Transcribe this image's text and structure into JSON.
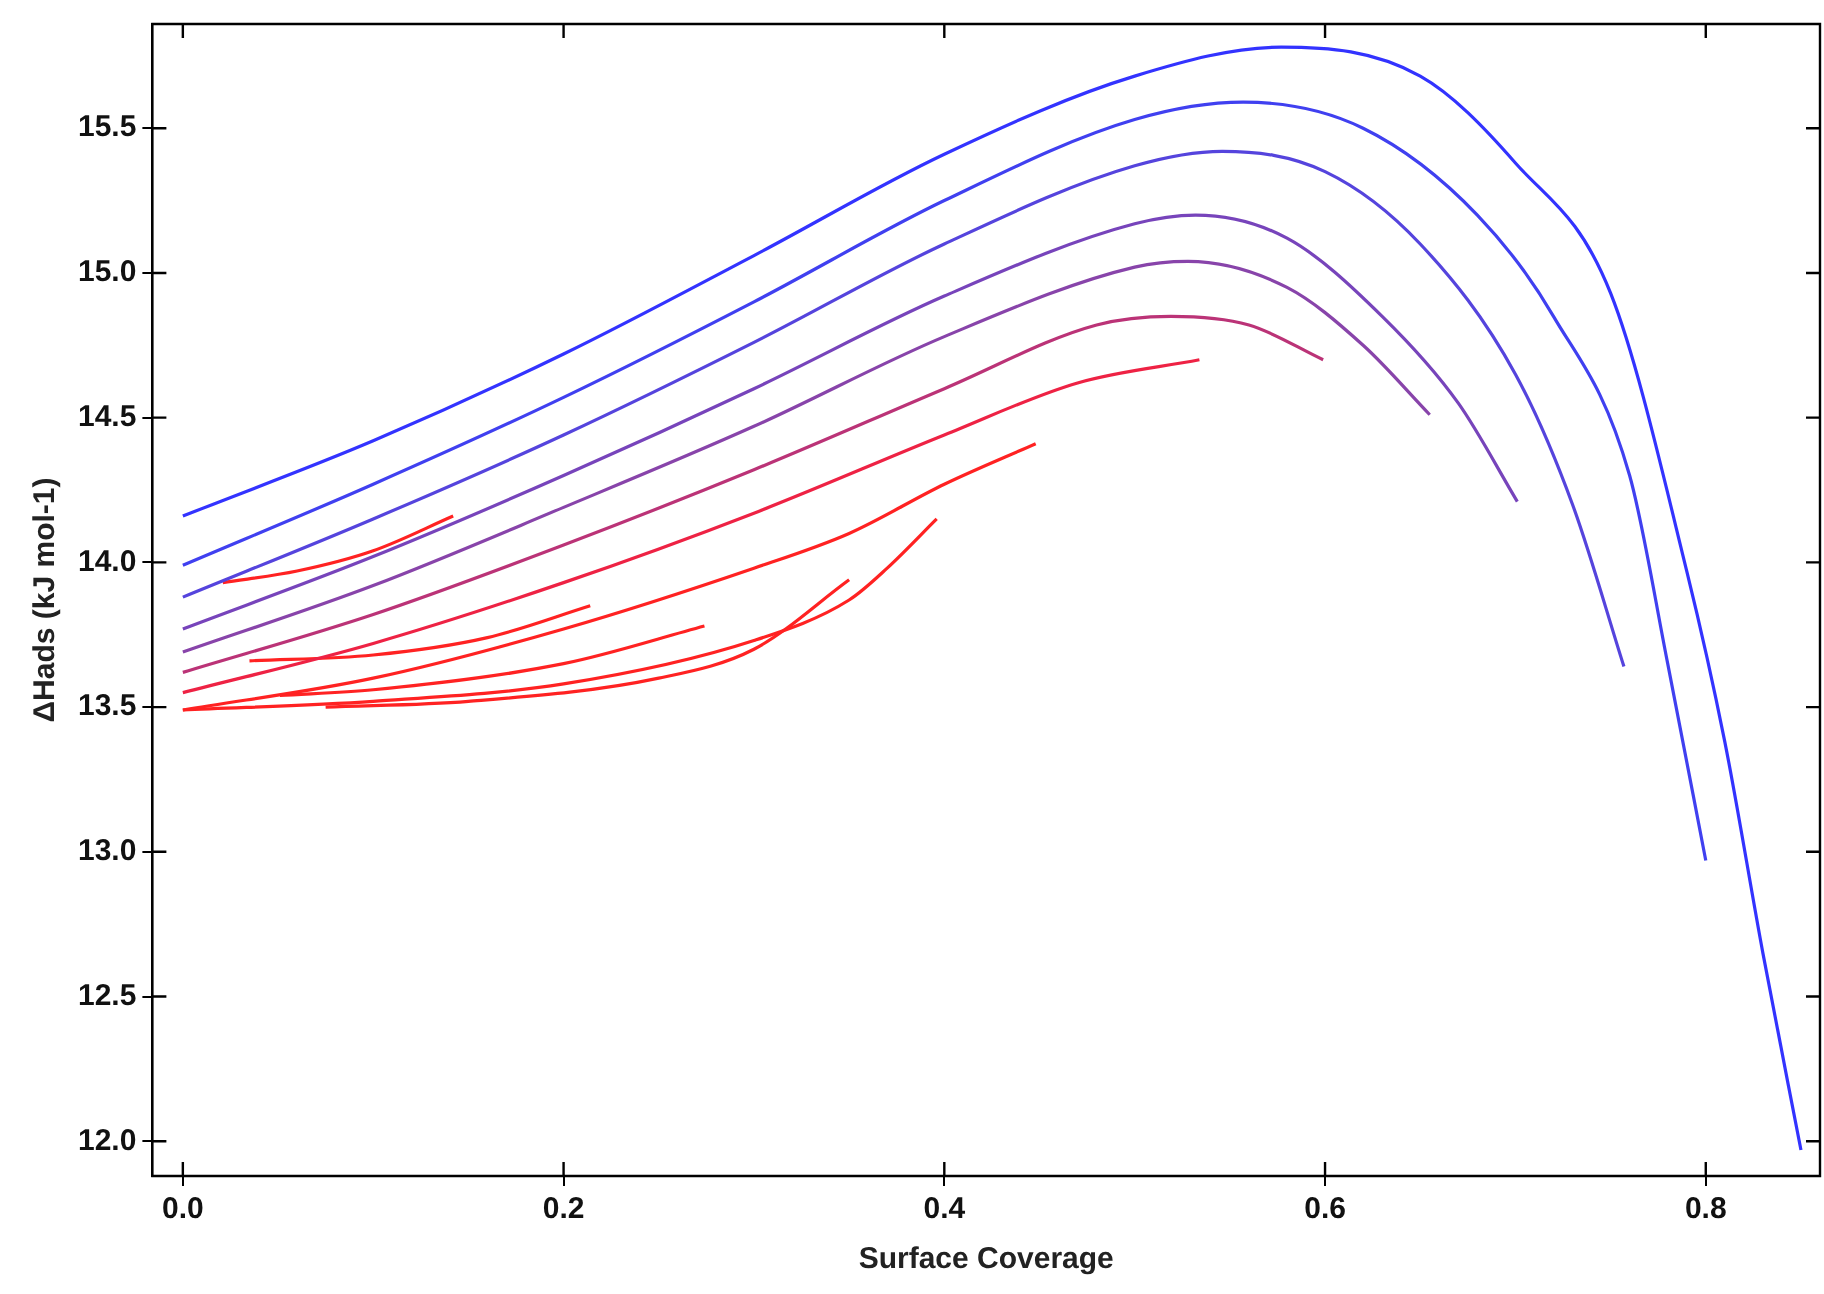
{
  "chart_data": {
    "type": "line",
    "xlabel": "Surface Coverage",
    "ylabel": "ΔHads (kJ mol-1)",
    "xlim": [
      -0.016,
      0.86
    ],
    "ylim": [
      11.88,
      15.86
    ],
    "xticks": [
      {
        "value": 0,
        "label": "0.0"
      },
      {
        "value": 0.2,
        "label": "0.2"
      },
      {
        "value": 0.4,
        "label": "0.4"
      },
      {
        "value": 0.6,
        "label": "0.6"
      },
      {
        "value": 0.8,
        "label": "0.8"
      }
    ],
    "yticks": [
      {
        "value": 12,
        "label": "12.0"
      },
      {
        "value": 12.5,
        "label": "12.5"
      },
      {
        "value": 13,
        "label": "13.0"
      },
      {
        "value": 13.5,
        "label": "13.5"
      },
      {
        "value": 14,
        "label": "14.0"
      },
      {
        "value": 14.5,
        "label": "14.5"
      },
      {
        "value": 15,
        "label": "15.0"
      },
      {
        "value": 15.5,
        "label": "15.5"
      }
    ],
    "grid": false,
    "legend": false,
    "marker": "none",
    "line_style": "solid",
    "series": [
      {
        "color": "#3333ff",
        "x": [
          0,
          0.1,
          0.2,
          0.3,
          0.4,
          0.5,
          0.577,
          0.65,
          0.7,
          0.75,
          0.79,
          0.81,
          0.83,
          0.85
        ],
        "values": [
          14.16,
          14.42,
          14.72,
          15.06,
          15.41,
          15.68,
          15.78,
          15.68,
          15.38,
          14.93,
          13.97,
          13.38,
          12.65,
          11.97
        ]
      },
      {
        "color": "#4040f0",
        "x": [
          0,
          0.1,
          0.2,
          0.3,
          0.4,
          0.5,
          0.557,
          0.62,
          0.68,
          0.72,
          0.76,
          0.78,
          0.8
        ],
        "values": [
          13.99,
          14.27,
          14.57,
          14.9,
          15.25,
          15.53,
          15.59,
          15.5,
          15.2,
          14.85,
          14.3,
          13.65,
          12.97
        ]
      },
      {
        "color": "#5544dd",
        "x": [
          0,
          0.1,
          0.2,
          0.3,
          0.4,
          0.5,
          0.546,
          0.6,
          0.65,
          0.7,
          0.73,
          0.757
        ],
        "values": [
          13.88,
          14.15,
          14.44,
          14.76,
          15.1,
          15.37,
          15.42,
          15.35,
          15.1,
          14.65,
          14.2,
          13.64
        ]
      },
      {
        "color": "#7744bb",
        "x": [
          0,
          0.1,
          0.2,
          0.3,
          0.4,
          0.5,
          0.532,
          0.58,
          0.63,
          0.67,
          0.701
        ],
        "values": [
          13.77,
          14.02,
          14.3,
          14.6,
          14.92,
          15.17,
          15.2,
          15.12,
          14.85,
          14.55,
          14.21
        ]
      },
      {
        "color": "#8844aa",
        "x": [
          0,
          0.1,
          0.2,
          0.3,
          0.4,
          0.5,
          0.528,
          0.58,
          0.62,
          0.655
        ],
        "values": [
          13.69,
          13.92,
          14.19,
          14.47,
          14.78,
          15.02,
          15.04,
          14.95,
          14.75,
          14.51
        ]
      },
      {
        "color": "#bb3377",
        "x": [
          0,
          0.1,
          0.2,
          0.3,
          0.4,
          0.48,
          0.519,
          0.56,
          0.599
        ],
        "values": [
          13.62,
          13.82,
          14.06,
          14.32,
          14.6,
          14.82,
          14.85,
          14.82,
          14.7
        ]
      },
      {
        "color": "#ee2244",
        "x": [
          0,
          0.1,
          0.2,
          0.3,
          0.4,
          0.47,
          0.534
        ],
        "values": [
          13.55,
          13.72,
          13.93,
          14.17,
          14.44,
          14.62,
          14.7
        ]
      },
      {
        "color": "#ff2222",
        "x": [
          0,
          0.1,
          0.2,
          0.3,
          0.35,
          0.4,
          0.448
        ],
        "values": [
          13.49,
          13.6,
          13.77,
          13.98,
          14.1,
          14.27,
          14.41
        ]
      },
      {
        "color": "#ff2222",
        "x": [
          0,
          0.1,
          0.2,
          0.3,
          0.35,
          0.37,
          0.396
        ],
        "values": [
          13.49,
          13.52,
          13.58,
          13.73,
          13.87,
          13.98,
          14.15
        ]
      },
      {
        "color": "#ff2222",
        "x": [
          0.075,
          0.15,
          0.25,
          0.3,
          0.35
        ],
        "values": [
          13.5,
          13.52,
          13.6,
          13.7,
          13.94
        ]
      },
      {
        "color": "#ff2222",
        "x": [
          0.051,
          0.1,
          0.2,
          0.274
        ],
        "values": [
          13.54,
          13.56,
          13.65,
          13.78
        ]
      },
      {
        "color": "#ff2222",
        "x": [
          0.035,
          0.1,
          0.16,
          0.214
        ],
        "values": [
          13.66,
          13.68,
          13.74,
          13.85
        ]
      },
      {
        "color": "#ff2222",
        "x": [
          0.021,
          0.06,
          0.1,
          0.142
        ],
        "values": [
          13.93,
          13.97,
          14.04,
          14.16
        ]
      }
    ]
  }
}
